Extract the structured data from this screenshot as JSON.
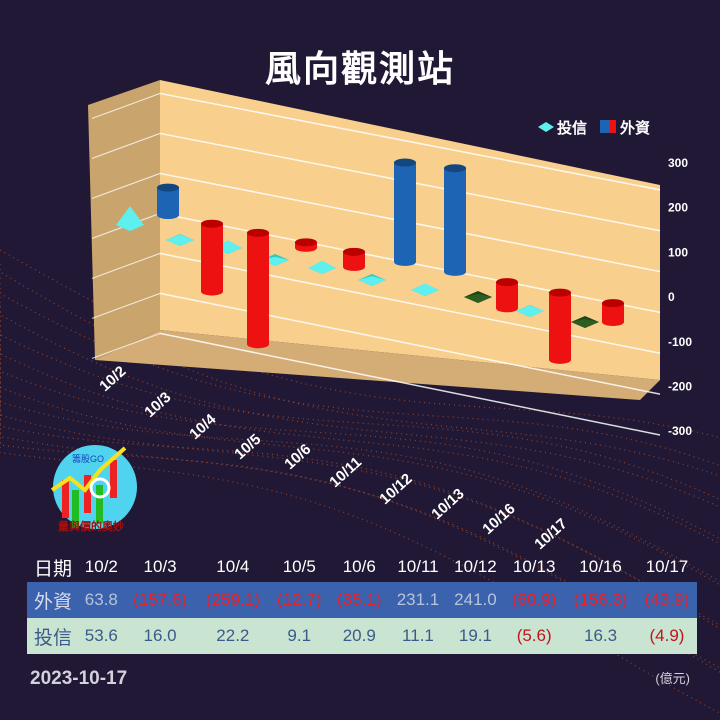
{
  "title": "風向觀測站",
  "logo": {
    "name": "籌股GO",
    "slogan": "量與價的奧妙"
  },
  "chart_data": {
    "type": "bar3d",
    "title": "風向觀測站",
    "categories": [
      "10/2",
      "10/3",
      "10/4",
      "10/5",
      "10/6",
      "10/11",
      "10/12",
      "10/13",
      "10/16",
      "10/17"
    ],
    "series": [
      {
        "name": "投信",
        "color": "#5ef0ee",
        "values": [
          53.6,
          16.0,
          22.2,
          9.1,
          20.9,
          11.1,
          19.1,
          -5.6,
          16.3,
          -4.9
        ]
      },
      {
        "name": "外資",
        "color": "#ee1111",
        "negative_color": "#ee1111",
        "positive_color": "#1e64b4",
        "values": [
          63.8,
          -157.6,
          -259.1,
          -12.7,
          -35.1,
          231.1,
          241.0,
          -60.9,
          -156.3,
          -43.9
        ]
      }
    ],
    "yticks": [
      300,
      200,
      100,
      0,
      -100,
      -200,
      -300
    ],
    "ylim": [
      -300,
      300
    ],
    "legend": "top-right",
    "grid": true
  },
  "table": {
    "header_label": "日期",
    "rows": [
      {
        "label": "外資",
        "values": [
          "63.8",
          "(157.6)",
          "(259.1)",
          "(12.7)",
          "(35.1)",
          "231.1",
          "241.0",
          "(60.9)",
          "(156.3)",
          "(43.9)"
        ]
      },
      {
        "label": "投信",
        "values": [
          "53.6",
          "16.0",
          "22.2",
          "9.1",
          "20.9",
          "11.1",
          "19.1",
          "(5.6)",
          "16.3",
          "(4.9)"
        ]
      }
    ]
  },
  "date": "2023-10-17",
  "unit": "(億元)"
}
